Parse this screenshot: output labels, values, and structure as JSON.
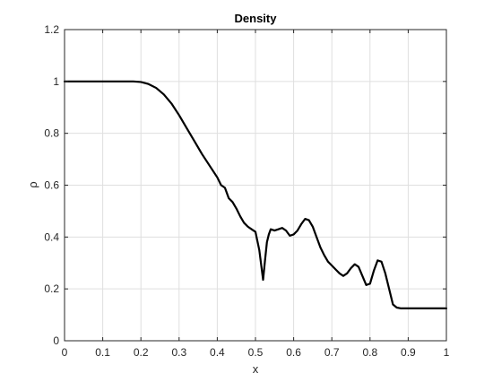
{
  "chart_data": {
    "type": "line",
    "title": "Density",
    "xlabel": "x",
    "ylabel": "ρ",
    "xlim": [
      0,
      1
    ],
    "ylim": [
      0,
      1.2
    ],
    "xticks": [
      0,
      0.1,
      0.2,
      0.3,
      0.4,
      0.5,
      0.6,
      0.7,
      0.8,
      0.9,
      1
    ],
    "xtick_labels": [
      "0",
      "0.1",
      "0.2",
      "0.3",
      "0.4",
      "0.5",
      "0.6",
      "0.7",
      "0.8",
      "0.9",
      "1"
    ],
    "yticks": [
      0,
      0.2,
      0.4,
      0.6,
      0.8,
      1,
      1.2
    ],
    "ytick_labels": [
      "0",
      "0.2",
      "0.4",
      "0.6",
      "0.8",
      "1",
      "1.2"
    ],
    "grid": true,
    "line_color": "#000000",
    "series": [
      {
        "x": [
          0,
          0.18,
          0.2,
          0.22,
          0.24,
          0.26,
          0.28,
          0.3,
          0.32,
          0.34,
          0.36,
          0.38,
          0.4,
          0.41,
          0.42,
          0.43,
          0.44,
          0.45,
          0.46,
          0.47,
          0.48,
          0.49,
          0.5,
          0.51,
          0.52,
          0.525,
          0.53,
          0.535,
          0.54,
          0.55,
          0.56,
          0.57,
          0.58,
          0.59,
          0.6,
          0.61,
          0.62,
          0.63,
          0.64,
          0.65,
          0.66,
          0.67,
          0.68,
          0.69,
          0.7,
          0.71,
          0.72,
          0.73,
          0.74,
          0.75,
          0.76,
          0.77,
          0.78,
          0.79,
          0.8,
          0.81,
          0.82,
          0.83,
          0.84,
          0.85,
          0.86,
          0.87,
          0.88,
          0.9,
          0.95,
          1.0
        ],
        "y": [
          1.0,
          1.0,
          0.998,
          0.99,
          0.975,
          0.95,
          0.915,
          0.87,
          0.82,
          0.77,
          0.72,
          0.675,
          0.63,
          0.6,
          0.59,
          0.55,
          0.535,
          0.51,
          0.48,
          0.455,
          0.44,
          0.43,
          0.42,
          0.35,
          0.235,
          0.31,
          0.38,
          0.41,
          0.43,
          0.425,
          0.43,
          0.435,
          0.425,
          0.405,
          0.41,
          0.425,
          0.45,
          0.47,
          0.465,
          0.44,
          0.4,
          0.36,
          0.33,
          0.305,
          0.29,
          0.275,
          0.26,
          0.25,
          0.26,
          0.28,
          0.295,
          0.285,
          0.25,
          0.215,
          0.22,
          0.27,
          0.31,
          0.305,
          0.26,
          0.2,
          0.14,
          0.128,
          0.125,
          0.125,
          0.125,
          0.125
        ]
      }
    ]
  }
}
